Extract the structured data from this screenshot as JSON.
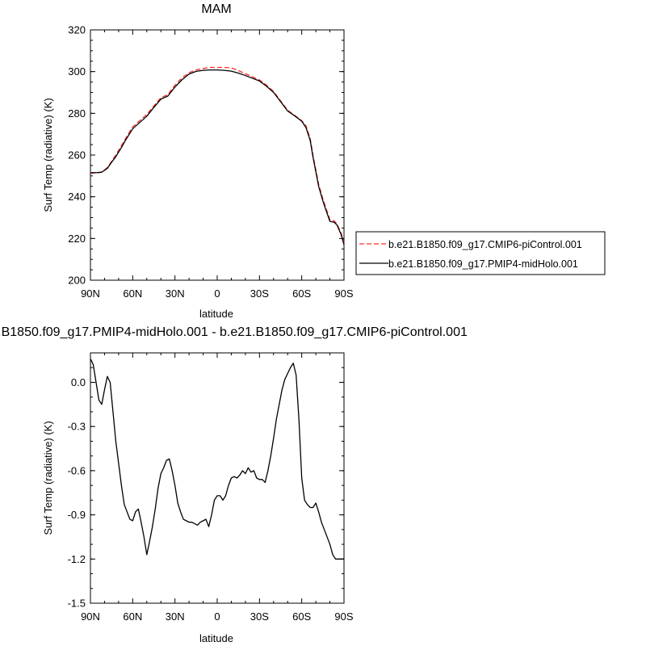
{
  "chart_data": [
    {
      "type": "line",
      "title": "MAM",
      "xlabel": "latitude",
      "ylabel": "Surf Temp (radiative) (K)",
      "xlim": [
        90,
        -90
      ],
      "ylim": [
        200,
        320
      ],
      "x_ticks": [
        {
          "value": 90,
          "label": "90N"
        },
        {
          "value": 60,
          "label": "60N"
        },
        {
          "value": 30,
          "label": "30N"
        },
        {
          "value": 0,
          "label": "0"
        },
        {
          "value": -30,
          "label": "30S"
        },
        {
          "value": -60,
          "label": "60S"
        },
        {
          "value": -90,
          "label": "90S"
        }
      ],
      "y_ticks": [
        {
          "value": 200,
          "label": "200"
        },
        {
          "value": 220,
          "label": "220"
        },
        {
          "value": 240,
          "label": "240"
        },
        {
          "value": 260,
          "label": "260"
        },
        {
          "value": 280,
          "label": "280"
        },
        {
          "value": 300,
          "label": "300"
        },
        {
          "value": 320,
          "label": "320"
        }
      ],
      "legend_position": "right",
      "series": [
        {
          "name": "b.e21.B1850.f09_g17.CMIP6-piControl.001",
          "color": "#ff2b2b",
          "dash": "dashed",
          "x": [
            90,
            85,
            82,
            78,
            75,
            72,
            68,
            65,
            60,
            55,
            50,
            45,
            40,
            35,
            30,
            25,
            20,
            15,
            10,
            5,
            0,
            -5,
            -10,
            -15,
            -20,
            -25,
            -30,
            -35,
            -40,
            -45,
            -50,
            -55,
            -60,
            -63,
            -66,
            -68,
            -70,
            -72,
            -75,
            -78,
            -80,
            -83,
            -85,
            -88,
            -90
          ],
          "y": [
            251.3,
            251.5,
            251.8,
            254,
            257,
            260,
            264.5,
            268,
            273.5,
            276.5,
            279.5,
            283.5,
            287.5,
            289,
            293.5,
            297,
            299.5,
            300.8,
            301.5,
            302,
            302,
            302,
            301.8,
            300.5,
            299,
            297.5,
            296,
            293.5,
            290.5,
            286,
            281.5,
            279,
            276.5,
            274,
            268,
            260,
            253,
            246,
            239,
            233,
            229,
            228.5,
            227,
            222.5,
            218
          ]
        },
        {
          "name": "b.e21.B1850.f09_g17.PMIP4-midHolo.001",
          "color": "#000000",
          "dash": "solid",
          "x": [
            90,
            85,
            82,
            78,
            75,
            72,
            68,
            65,
            60,
            55,
            50,
            45,
            40,
            35,
            30,
            25,
            20,
            15,
            10,
            5,
            0,
            -5,
            -10,
            -15,
            -20,
            -25,
            -30,
            -35,
            -40,
            -45,
            -50,
            -55,
            -60,
            -63,
            -66,
            -68,
            -70,
            -72,
            -75,
            -78,
            -80,
            -83,
            -85,
            -88,
            -90
          ],
          "y": [
            251.5,
            251.6,
            251.8,
            253.6,
            256.5,
            259.2,
            263.6,
            267.2,
            272.6,
            275.6,
            278.6,
            282.8,
            286.8,
            288.3,
            292.6,
            296.1,
            298.8,
            300.1,
            300.6,
            300.8,
            300.8,
            300.6,
            300.2,
            299.3,
            298.1,
            296.8,
            295.5,
            293,
            290,
            285.6,
            281.1,
            278.8,
            276.2,
            273.2,
            267,
            259,
            252,
            245,
            238,
            232,
            228.2,
            227.8,
            226.5,
            221.8,
            217
          ]
        }
      ]
    },
    {
      "type": "line",
      "title": "b.e21.B1850.f09_g17.PMIP4-midHolo.001 - b.e21.B1850.f09_g17.CMIP6-piControl.001",
      "xlabel": "latitude",
      "ylabel": "Surf Temp (radiative) (K)",
      "xlim": [
        90,
        -90
      ],
      "ylim": [
        -1.5,
        0.2
      ],
      "x_ticks": [
        {
          "value": 90,
          "label": "90N"
        },
        {
          "value": 60,
          "label": "60N"
        },
        {
          "value": 30,
          "label": "30N"
        },
        {
          "value": 0,
          "label": "0"
        },
        {
          "value": -30,
          "label": "30S"
        },
        {
          "value": -60,
          "label": "60S"
        },
        {
          "value": -90,
          "label": "90S"
        }
      ],
      "y_ticks": [
        {
          "value": 0.0,
          "label": "0.0"
        },
        {
          "value": -0.3,
          "label": "-0.3"
        },
        {
          "value": -0.6,
          "label": "-0.6"
        },
        {
          "value": -0.9,
          "label": "-0.9"
        },
        {
          "value": -1.2,
          "label": "-1.2"
        },
        {
          "value": -1.5,
          "label": "-1.5"
        }
      ],
      "series": [
        {
          "color": "#000000",
          "dash": "solid",
          "x": [
            90,
            88,
            86,
            84,
            82,
            80,
            78,
            76,
            74,
            72,
            70,
            68,
            66,
            64,
            62,
            60,
            58,
            56,
            54,
            52,
            50,
            48,
            46,
            44,
            42,
            40,
            38,
            36,
            34,
            32,
            30,
            28,
            26,
            24,
            22,
            20,
            18,
            16,
            14,
            12,
            10,
            8,
            6,
            4,
            2,
            0,
            -2,
            -4,
            -6,
            -8,
            -10,
            -12,
            -14,
            -16,
            -18,
            -20,
            -22,
            -24,
            -26,
            -28,
            -30,
            -32,
            -34,
            -36,
            -38,
            -40,
            -42,
            -44,
            -46,
            -48,
            -50,
            -52,
            -54,
            -56,
            -58,
            -60,
            -62,
            -64,
            -66,
            -68,
            -70,
            -72,
            -74,
            -76,
            -78,
            -80,
            -82,
            -84,
            -86,
            -88,
            -90
          ],
          "y": [
            0.16,
            0.12,
            0.0,
            -0.12,
            -0.15,
            -0.05,
            0.04,
            0.0,
            -0.2,
            -0.4,
            -0.55,
            -0.7,
            -0.83,
            -0.88,
            -0.93,
            -0.94,
            -0.88,
            -0.86,
            -0.95,
            -1.05,
            -1.17,
            -1.08,
            -0.98,
            -0.86,
            -0.72,
            -0.62,
            -0.58,
            -0.53,
            -0.52,
            -0.6,
            -0.7,
            -0.82,
            -0.88,
            -0.93,
            -0.94,
            -0.95,
            -0.95,
            -0.96,
            -0.97,
            -0.95,
            -0.94,
            -0.93,
            -0.98,
            -0.9,
            -0.8,
            -0.77,
            -0.77,
            -0.8,
            -0.77,
            -0.7,
            -0.65,
            -0.64,
            -0.65,
            -0.63,
            -0.6,
            -0.62,
            -0.58,
            -0.61,
            -0.6,
            -0.65,
            -0.66,
            -0.66,
            -0.68,
            -0.6,
            -0.5,
            -0.38,
            -0.25,
            -0.15,
            -0.05,
            0.02,
            0.06,
            0.1,
            0.13,
            0.05,
            -0.25,
            -0.65,
            -0.8,
            -0.83,
            -0.85,
            -0.85,
            -0.82,
            -0.88,
            -0.95,
            -1.0,
            -1.05,
            -1.1,
            -1.17,
            -1.2,
            -1.2,
            -1.2,
            -1.2
          ]
        }
      ]
    }
  ]
}
